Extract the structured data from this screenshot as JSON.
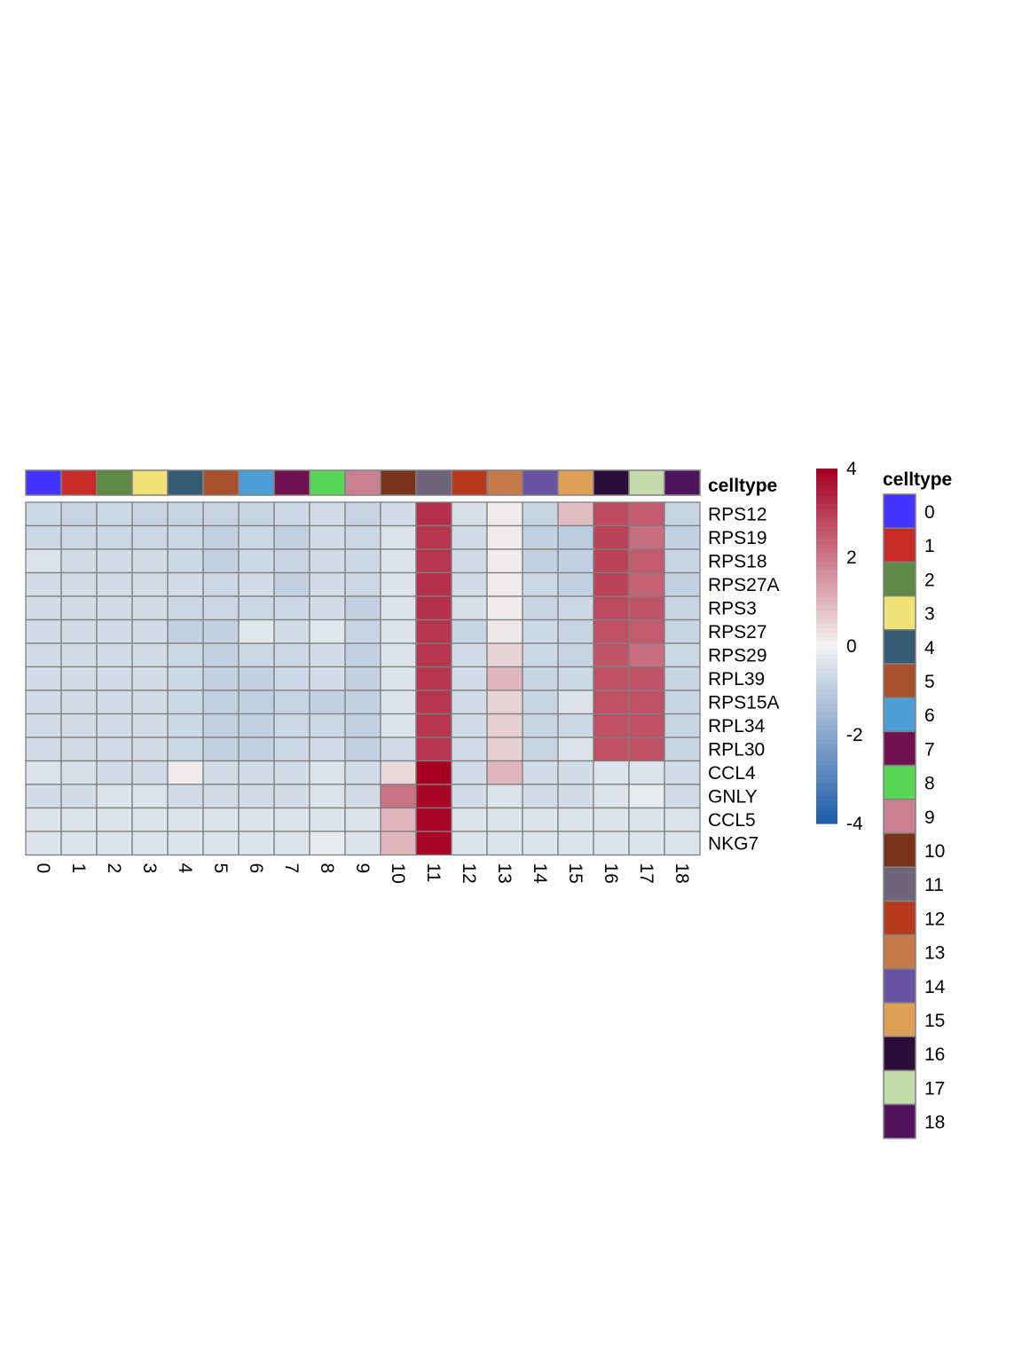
{
  "chart_data": {
    "type": "heatmap",
    "title": "",
    "annotation_label": "celltype",
    "columns": [
      "0",
      "1",
      "2",
      "3",
      "4",
      "5",
      "6",
      "7",
      "8",
      "9",
      "10",
      "11",
      "12",
      "13",
      "14",
      "15",
      "16",
      "17",
      "18"
    ],
    "rows": [
      "RPS12",
      "RPS19",
      "RPS18",
      "RPS27A",
      "RPS3",
      "RPS27",
      "RPS29",
      "RPL39",
      "RPS15A",
      "RPL34",
      "RPL30",
      "CCL4",
      "GNLY",
      "CCL5",
      "NKG7"
    ],
    "values": [
      [
        -0.7,
        -0.8,
        -0.7,
        -0.8,
        -0.8,
        -0.8,
        -0.8,
        -0.7,
        -0.6,
        -0.8,
        -0.6,
        3.2,
        -0.5,
        0.1,
        -0.8,
        0.9,
        2.8,
        2.5,
        -0.8
      ],
      [
        -0.7,
        -0.7,
        -0.7,
        -0.7,
        -0.7,
        -0.9,
        -0.7,
        -0.9,
        -0.6,
        -0.7,
        -0.4,
        3.1,
        -0.6,
        0.1,
        -0.9,
        -1.0,
        2.9,
        2.2,
        -0.9
      ],
      [
        -0.4,
        -0.6,
        -0.6,
        -0.6,
        -0.7,
        -0.9,
        -0.7,
        -0.8,
        -0.6,
        -0.7,
        -0.4,
        3.1,
        -0.6,
        0.1,
        -0.9,
        -0.9,
        2.9,
        2.5,
        -0.8
      ],
      [
        -0.6,
        -0.6,
        -0.6,
        -0.6,
        -0.6,
        -0.7,
        -0.6,
        -0.9,
        -0.6,
        -0.7,
        -0.4,
        3.2,
        -0.6,
        0.1,
        -0.7,
        -0.9,
        2.9,
        2.4,
        -0.9
      ],
      [
        -0.6,
        -0.6,
        -0.6,
        -0.6,
        -0.7,
        -0.7,
        -0.7,
        -0.7,
        -0.6,
        -0.9,
        -0.4,
        3.2,
        -0.5,
        0.1,
        -0.8,
        -0.7,
        2.8,
        2.6,
        -0.8
      ],
      [
        -0.6,
        -0.6,
        -0.6,
        -0.6,
        -0.9,
        -0.9,
        -0.3,
        -0.6,
        -0.3,
        -0.8,
        -0.4,
        3.1,
        -0.8,
        0.2,
        -0.7,
        -0.8,
        2.7,
        2.5,
        -0.8
      ],
      [
        -0.6,
        -0.6,
        -0.6,
        -0.6,
        -0.7,
        -0.9,
        -0.7,
        -0.7,
        -0.6,
        -0.9,
        -0.4,
        3.1,
        -0.6,
        0.5,
        -0.7,
        -0.8,
        2.6,
        2.2,
        -0.7
      ],
      [
        -0.6,
        -0.6,
        -0.6,
        -0.6,
        -0.7,
        -0.9,
        -0.9,
        -0.7,
        -0.6,
        -0.9,
        -0.4,
        3.1,
        -0.6,
        1.0,
        -0.8,
        -0.7,
        2.7,
        2.6,
        -0.8
      ],
      [
        -0.6,
        -0.6,
        -0.6,
        -0.6,
        -0.7,
        -0.9,
        -0.9,
        -0.8,
        -0.9,
        -0.9,
        -0.4,
        3.1,
        -0.6,
        0.5,
        -0.8,
        -0.4,
        2.7,
        2.7,
        -0.8
      ],
      [
        -0.6,
        -0.6,
        -0.6,
        -0.6,
        -0.7,
        -0.9,
        -0.9,
        -0.7,
        -0.7,
        -0.9,
        -0.4,
        3.1,
        -0.6,
        0.6,
        -0.8,
        -0.7,
        2.7,
        2.7,
        -0.8
      ],
      [
        -0.6,
        -0.6,
        -0.6,
        -0.6,
        -0.7,
        -0.9,
        -0.9,
        -0.7,
        -0.6,
        -0.9,
        -0.6,
        3.1,
        -0.6,
        0.6,
        -0.8,
        -0.4,
        2.7,
        2.7,
        -0.8
      ],
      [
        -0.4,
        -0.5,
        -0.6,
        -0.6,
        0.1,
        -0.6,
        -0.6,
        -0.6,
        -0.4,
        -0.6,
        0.4,
        4.0,
        -0.6,
        1.0,
        -0.6,
        -0.6,
        -0.4,
        -0.4,
        -0.6
      ],
      [
        -0.6,
        -0.6,
        -0.4,
        -0.4,
        -0.6,
        -0.6,
        -0.6,
        -0.6,
        -0.4,
        -0.6,
        2.1,
        3.9,
        -0.6,
        -0.4,
        -0.6,
        -0.6,
        -0.4,
        -0.2,
        -0.6
      ],
      [
        -0.4,
        -0.4,
        -0.4,
        -0.4,
        -0.4,
        -0.4,
        -0.4,
        -0.4,
        -0.4,
        -0.4,
        1.0,
        3.9,
        -0.4,
        -0.4,
        -0.4,
        -0.4,
        -0.4,
        -0.4,
        -0.4
      ],
      [
        -0.4,
        -0.4,
        -0.4,
        -0.4,
        -0.4,
        -0.4,
        -0.4,
        -0.4,
        -0.2,
        -0.4,
        1.0,
        3.9,
        -0.4,
        -0.4,
        -0.4,
        -0.4,
        -0.4,
        -0.4,
        -0.4
      ]
    ],
    "celltype_colors": [
      "#4433ff",
      "#c62b27",
      "#5e8a45",
      "#f0e277",
      "#375a74",
      "#a9512c",
      "#4d9fd6",
      "#6f1151",
      "#5ad655",
      "#cb7f93",
      "#7a3318",
      "#6f6479",
      "#b83a1e",
      "#c57a4b",
      "#6b53a3",
      "#dea057",
      "#2a0d3b",
      "#c5dbac",
      "#50145e"
    ],
    "color_scale": {
      "min": -4,
      "max": 4,
      "ticks": [
        "4",
        "2",
        "0",
        "-2",
        "-4"
      ],
      "low_color": "#1f5ca8",
      "mid_color": "#f2f2f2",
      "high_color": "#a50021"
    },
    "legend_title": "celltype",
    "legend_placement": "right",
    "grid": true
  }
}
